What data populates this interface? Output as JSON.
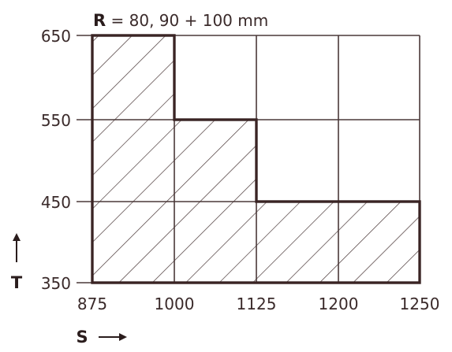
{
  "header": {
    "var": "R",
    "text": " = 80, 90 + 100 mm"
  },
  "x_axis": {
    "label": "S",
    "ticks": [
      "875",
      "1000",
      "1125",
      "1200",
      "1250"
    ]
  },
  "y_axis": {
    "label": "T",
    "ticks": [
      "650",
      "550",
      "450",
      "350"
    ]
  },
  "colors": {
    "ink": "#3a2424",
    "background": "#ffffff"
  },
  "hatched_region": {
    "description_steps": [
      {
        "S_from": "875",
        "S_to": "1000",
        "T_from": "350",
        "T_to": "650"
      },
      {
        "S_from": "1000",
        "S_to": "1125",
        "T_from": "350",
        "T_to": "550"
      },
      {
        "S_from": "1125",
        "S_to": "1250",
        "T_from": "350",
        "T_to": "450"
      }
    ]
  }
}
